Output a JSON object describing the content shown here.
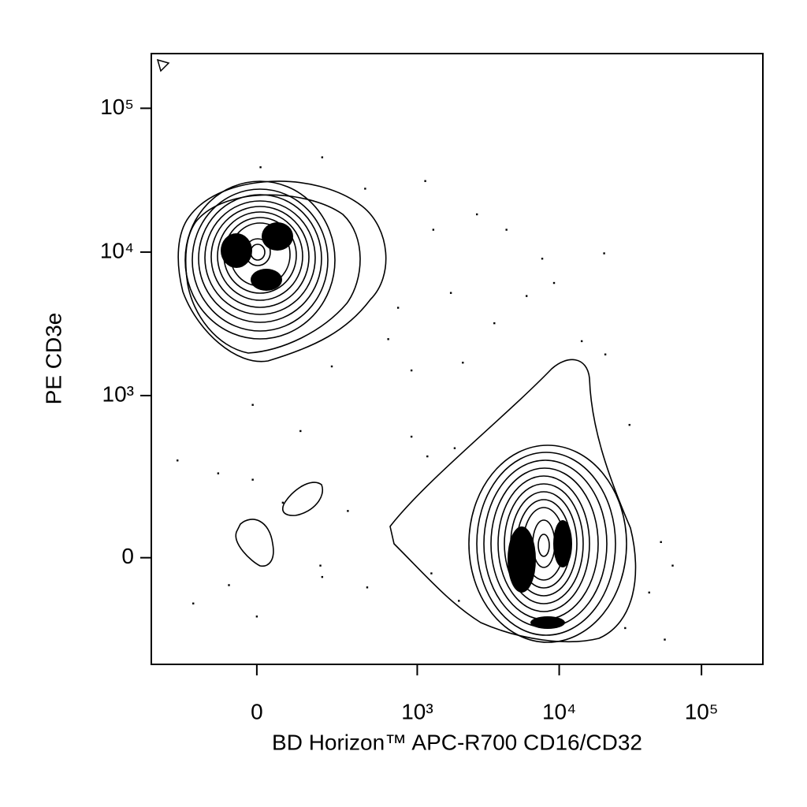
{
  "chart_data": {
    "type": "scatter",
    "x_label": "BD Horizon™ APC-R700 CD16/CD32",
    "y_label": "PE CD3e",
    "scale": "biexponential",
    "color": "#000000",
    "xlim": [
      -400,
      270000
    ],
    "ylim": [
      -400,
      240000
    ],
    "xticks": [
      0,
      {
        "value": 1000,
        "label": "10³"
      },
      {
        "value": 10000,
        "label": "10⁴"
      },
      {
        "value": 100000,
        "label": "10⁵"
      }
    ],
    "yticks": [
      0,
      {
        "value": 1000,
        "label": "10³"
      },
      {
        "value": 10000,
        "label": "10⁴"
      },
      {
        "value": 100000,
        "label": "10⁵"
      }
    ],
    "x": [
      190,
      9,
      420,
      1140,
      2640,
      1300,
      4260,
      7600,
      20700,
      5900,
      9200,
      1730,
      730,
      620,
      3500,
      2100,
      910,
      230,
      115,
      -10,
      -250,
      -100,
      310,
      183,
      190,
      -70,
      -183,
      0,
      435,
      1260,
      1970,
      42900,
      55200,
      51900,
      62700,
      29100,
      910,
      1180,
      1840,
      31200,
      21100,
      14400,
      -10,
      65
    ],
    "values": [
      45600,
      38900,
      27600,
      31200,
      18300,
      14300,
      14300,
      9000,
      9800,
      4950,
      6100,
      5200,
      4100,
      2480,
      3200,
      1700,
      1500,
      1600,
      560,
      860,
      340,
      270,
      123,
      -19,
      -47,
      -68,
      -120,
      -163,
      -74,
      -38,
      -112,
      -88,
      -258,
      38,
      -19,
      -207,
      510,
      365,
      420,
      620,
      1940,
      2400,
      240,
      150
    ]
  }
}
